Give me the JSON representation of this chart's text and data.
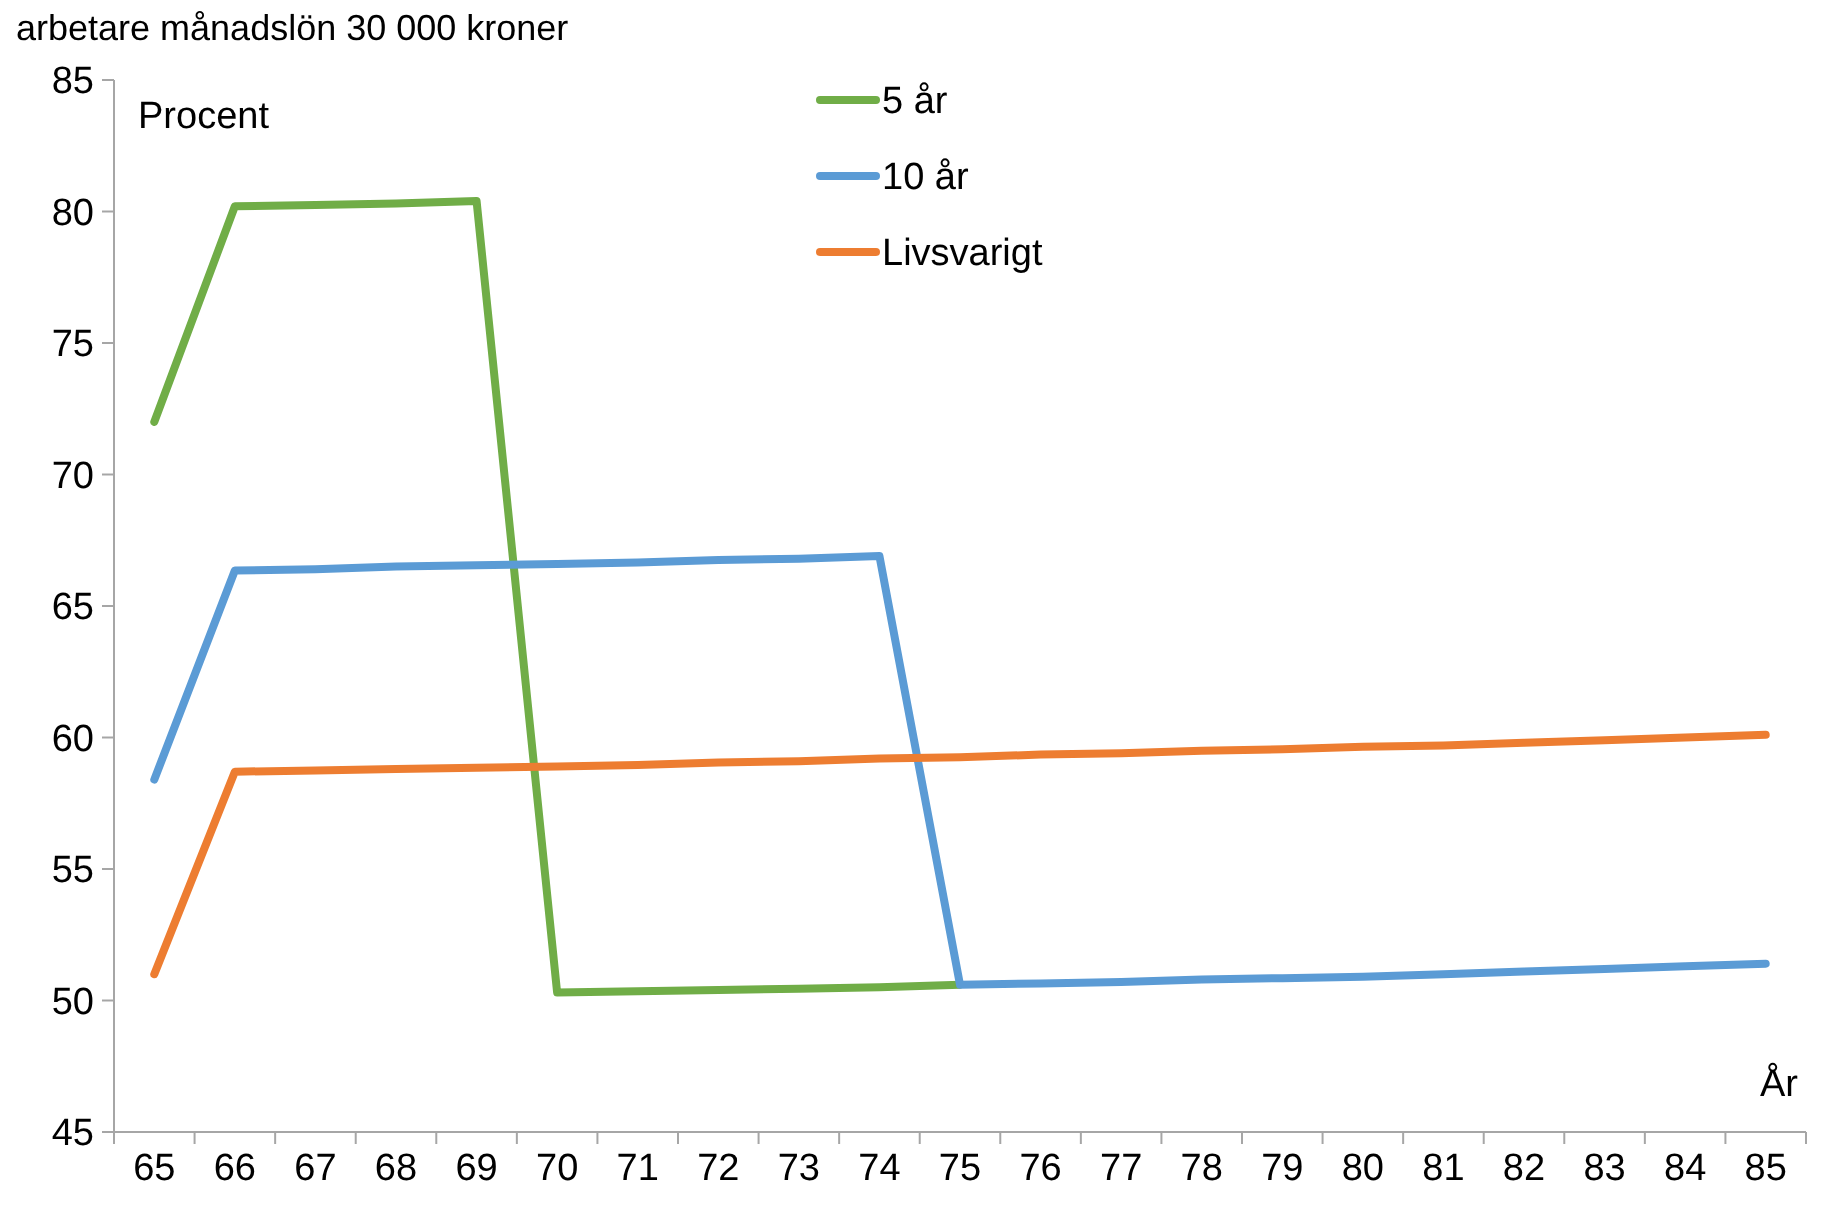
{
  "chart_data": {
    "type": "line",
    "title": "arbetare månadslön 30 000 kroner",
    "xlabel": "År",
    "ylabel": "Procent",
    "categories": [
      "65",
      "66",
      "67",
      "68",
      "69",
      "70",
      "71",
      "72",
      "73",
      "74",
      "75",
      "76",
      "77",
      "78",
      "79",
      "80",
      "81",
      "82",
      "83",
      "84",
      "85"
    ],
    "series": [
      {
        "name": "5 år",
        "color": "#70ad47",
        "values": [
          72,
          80.2,
          80.25,
          80.3,
          80.4,
          50.3,
          50.35,
          50.4,
          50.45,
          50.5,
          50.6,
          null,
          null,
          null,
          null,
          null,
          null,
          null,
          null,
          null,
          null
        ]
      },
      {
        "name": "10 år",
        "color": "#5b9bd5",
        "values": [
          58.4,
          66.35,
          66.4,
          66.5,
          66.55,
          66.6,
          66.65,
          66.75,
          66.8,
          66.9,
          50.6,
          50.65,
          50.7,
          50.8,
          50.85,
          50.9,
          51.0,
          51.1,
          51.2,
          51.3,
          51.4
        ]
      },
      {
        "name": "Livsvarigt",
        "color": "#ed7d31",
        "values": [
          51.0,
          58.7,
          58.75,
          58.8,
          58.85,
          58.9,
          58.95,
          59.05,
          59.1,
          59.2,
          59.25,
          59.35,
          59.4,
          59.5,
          59.55,
          59.65,
          59.7,
          59.8,
          59.9,
          60.0,
          60.1
        ]
      }
    ],
    "ylim": [
      45,
      85
    ],
    "yticks": [
      45,
      50,
      55,
      60,
      65,
      70,
      75,
      80,
      85
    ],
    "grid": false,
    "legend": "top",
    "marker": "none",
    "line_style": "solid"
  }
}
